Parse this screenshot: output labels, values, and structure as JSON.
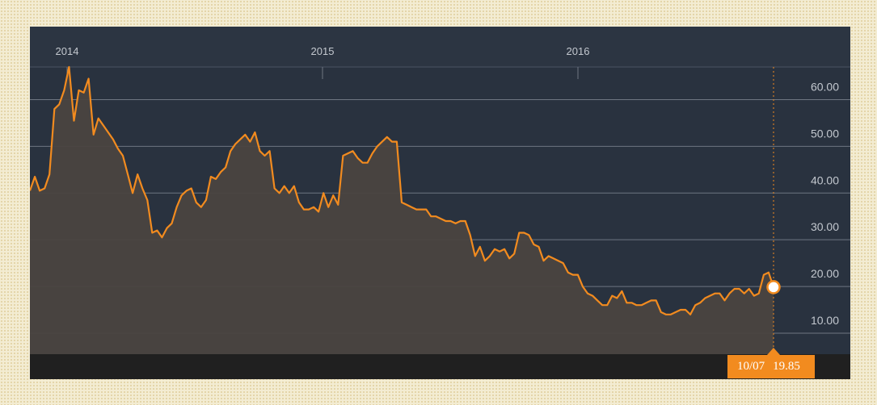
{
  "chart_data": {
    "type": "area",
    "x_axis_labels": [
      "2014",
      "2015",
      "2016"
    ],
    "y_tick_labels": [
      "60.00",
      "50.00",
      "40.00",
      "30.00",
      "20.00",
      "10.00"
    ],
    "y_ticks": [
      60,
      50,
      40,
      30,
      20,
      10
    ],
    "ylim": [
      5.5,
      67
    ],
    "grid": true,
    "colors": {
      "line": "#f28b1f",
      "fill": "#4a4440",
      "background": "#29323f"
    },
    "readout": {
      "date": "10/07",
      "value": "19.85",
      "value_num": 19.85
    },
    "series": [
      {
        "values": [
          40.5,
          43.5,
          40.5,
          41,
          44,
          58,
          59,
          62,
          67,
          55.5,
          62,
          61.5,
          64.5,
          52.5,
          56,
          54.5,
          53,
          51.5,
          49.5,
          48,
          44,
          40,
          44,
          41,
          38.5,
          31.5,
          32,
          30.5,
          32.5,
          33.5,
          37,
          39.5,
          40.5,
          41,
          38,
          37,
          38.5,
          43.5,
          43,
          44.5,
          45.5,
          49,
          50.5,
          51.5,
          52.5,
          51,
          53,
          49,
          48,
          49,
          41,
          40,
          41.5,
          40,
          41.5,
          38,
          36.5,
          36.5,
          37,
          36,
          40,
          37,
          39.5,
          37.5,
          48,
          48.5,
          49,
          47.5,
          46.5,
          46.5,
          48.5,
          50,
          51,
          52,
          51,
          51,
          38,
          37.5,
          37,
          36.5,
          36.5,
          36.5,
          35,
          35,
          34.5,
          34,
          34,
          33.5,
          34,
          34,
          31,
          26.5,
          28.5,
          25.5,
          26.5,
          28,
          27.5,
          28,
          26,
          27,
          31.5,
          31.5,
          31,
          29,
          28.5,
          25.5,
          26.5,
          26,
          25.5,
          25,
          23,
          22.5,
          22.5,
          20,
          18.5,
          18,
          17,
          16,
          16,
          18,
          17.5,
          19,
          16.5,
          16.5,
          16,
          16,
          16.5,
          17,
          17,
          14.5,
          14,
          14,
          14.5,
          15,
          15,
          14,
          16,
          16.5,
          17.5,
          18,
          18.5,
          18.5,
          17,
          18.5,
          19.5,
          19.5,
          18.5,
          19.5,
          18,
          18.5,
          22.5,
          23,
          19.85
        ]
      }
    ]
  }
}
